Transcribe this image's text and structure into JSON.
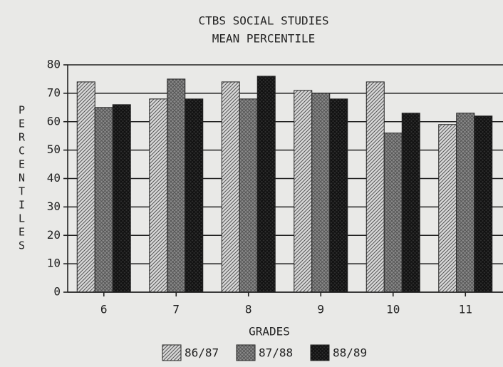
{
  "chart_data": {
    "type": "bar",
    "title": "CTBS SOCIAL STUDIES",
    "subtitle": "MEAN PERCENTILE",
    "x_label": "GRADES",
    "y_label": "PERCENTILES",
    "categories": [
      "6",
      "7",
      "8",
      "9",
      "10",
      "11"
    ],
    "series": [
      {
        "name": "86/87",
        "color": "#d8d8d8",
        "values": [
          74,
          68,
          74,
          71,
          74,
          59
        ]
      },
      {
        "name": "87/88",
        "color": "#8a8a8a",
        "values": [
          65,
          75,
          68,
          70,
          56,
          63
        ]
      },
      {
        "name": "88/89",
        "color": "#2e2e2e",
        "values": [
          66,
          68,
          76,
          68,
          63,
          62
        ]
      }
    ],
    "ylim": [
      0,
      80
    ],
    "yticks": [
      0,
      10,
      20,
      30,
      40,
      50,
      60,
      70,
      80
    ],
    "grid": true,
    "legend": "bottom"
  }
}
